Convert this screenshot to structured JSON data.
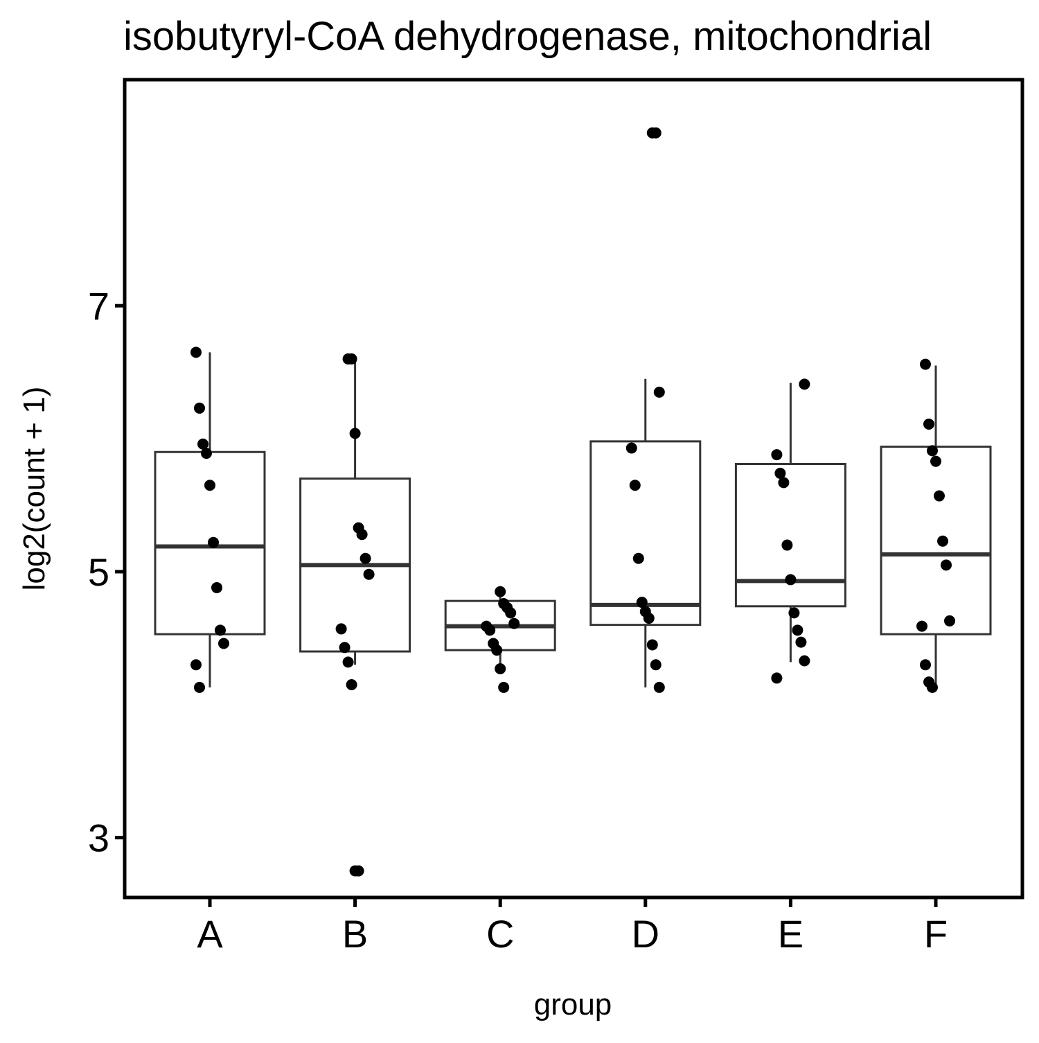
{
  "chart_data": {
    "type": "box",
    "title": "isobutyryl-CoA dehydrogenase, mitochondrial",
    "xlabel": "group",
    "ylabel": "log2(count + 1)",
    "categories": [
      "A",
      "B",
      "C",
      "D",
      "E",
      "F"
    ],
    "y_ticks": [
      3,
      5,
      7
    ],
    "y_tick_labels": [
      "3",
      "5",
      "7"
    ],
    "ylim": [
      2.55,
      8.7
    ],
    "grid": false,
    "legend": "none",
    "box_stats": [
      {
        "group": "A",
        "lower_whisker": 4.13,
        "q1": 4.53,
        "median": 5.19,
        "q3": 5.9,
        "upper_whisker": 6.65
      },
      {
        "group": "B",
        "lower_whisker": 4.3,
        "q1": 4.4,
        "median": 5.05,
        "q3": 5.7,
        "upper_whisker": 6.6
      },
      {
        "group": "C",
        "lower_whisker": 4.3,
        "q1": 4.41,
        "median": 4.59,
        "q3": 4.78,
        "upper_whisker": 4.88
      },
      {
        "group": "D",
        "lower_whisker": 4.13,
        "q1": 4.6,
        "median": 4.75,
        "q3": 5.98,
        "upper_whisker": 6.45
      },
      {
        "group": "E",
        "lower_whisker": 4.32,
        "q1": 4.74,
        "median": 4.93,
        "q3": 5.81,
        "upper_whisker": 6.42
      },
      {
        "group": "F",
        "lower_whisker": 4.13,
        "q1": 4.53,
        "median": 5.13,
        "q3": 5.94,
        "upper_whisker": 6.55
      }
    ],
    "series": [
      {
        "group": "A",
        "values": [
          6.65,
          6.23,
          5.96,
          5.89,
          5.65,
          5.22,
          4.88,
          4.56,
          4.46,
          4.3,
          4.13
        ]
      },
      {
        "group": "B",
        "values": [
          6.6,
          6.6,
          6.04,
          5.33,
          5.28,
          5.1,
          4.98,
          4.57,
          4.43,
          4.32,
          4.15,
          2.75,
          2.75
        ]
      },
      {
        "group": "C",
        "values": [
          4.85,
          4.76,
          4.73,
          4.69,
          4.61,
          4.59,
          4.56,
          4.46,
          4.41,
          4.27,
          4.13
        ]
      },
      {
        "group": "D",
        "values": [
          8.3,
          8.3,
          6.35,
          5.93,
          5.65,
          5.1,
          4.77,
          4.7,
          4.65,
          4.45,
          4.3,
          4.13
        ]
      },
      {
        "group": "E",
        "values": [
          6.41,
          5.88,
          5.74,
          5.67,
          5.2,
          4.94,
          4.69,
          4.56,
          4.47,
          4.33,
          4.2
        ]
      },
      {
        "group": "F",
        "values": [
          6.56,
          6.11,
          5.91,
          5.83,
          5.57,
          5.23,
          5.05,
          4.63,
          4.59,
          4.3,
          4.17,
          4.13
        ]
      }
    ]
  }
}
